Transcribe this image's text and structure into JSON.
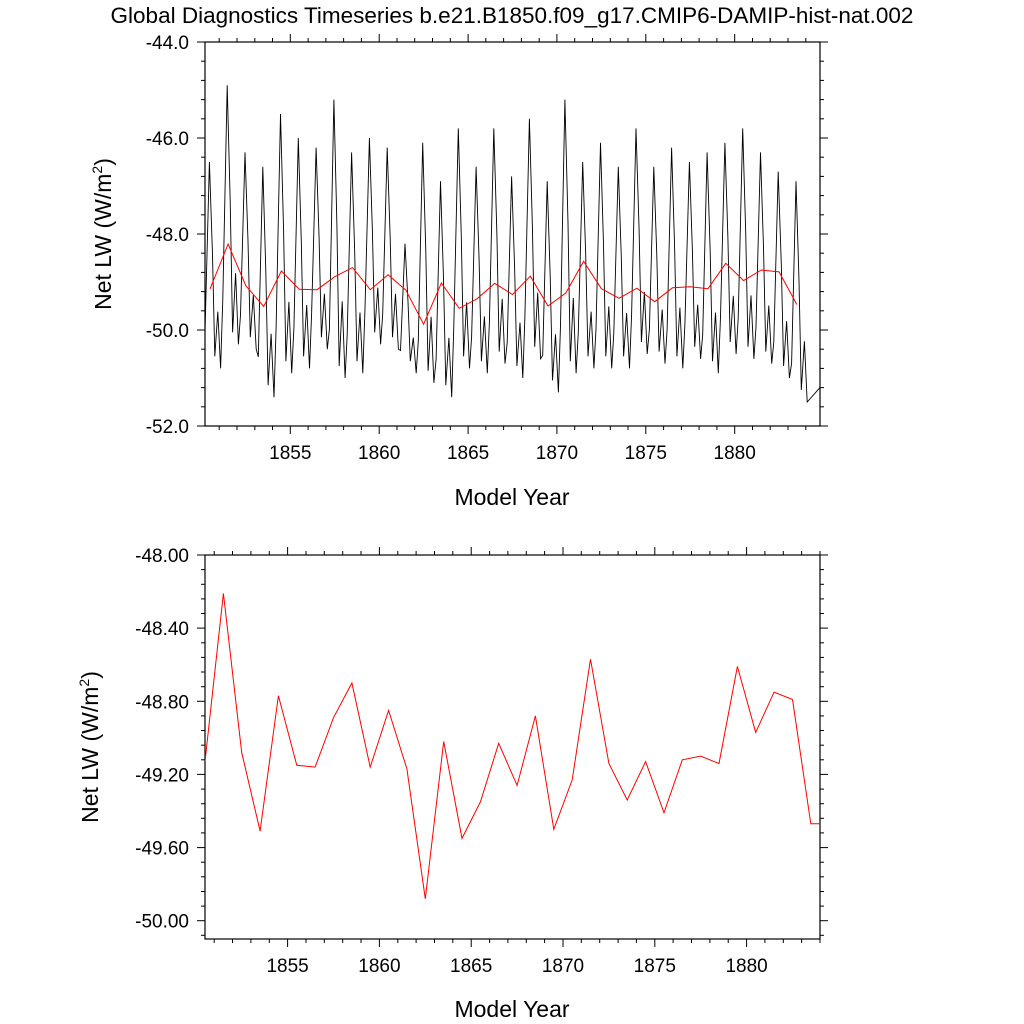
{
  "title": "Global Diagnostics Timeseries b.e21.B1850.f09_g17.CMIP6-DAMIP-hist-nat.002",
  "colors": {
    "monthly": "#000000",
    "annual": "#ff0000",
    "axis": "#000000"
  },
  "chart_data": [
    {
      "type": "line",
      "ylabel_main": "Net LW (W/m",
      "ylabel_sup": "2",
      "ylabel_close": ")",
      "xlabel": "Model Year",
      "xlim": [
        1850.2,
        1884.8
      ],
      "ylim": [
        -52.0,
        -44.0
      ],
      "xticks": [
        1855,
        1860,
        1865,
        1870,
        1875,
        1880
      ],
      "xtick_labels": [
        "1855",
        "1860",
        "1865",
        "1870",
        "1875",
        "1880"
      ],
      "yticks": [
        -52.0,
        -50.0,
        -48.0,
        -46.0,
        -44.0
      ],
      "ytick_labels": [
        "-52.0",
        "-50.0",
        "-48.0",
        "-46.0",
        "-44.0"
      ],
      "series": [
        {
          "name": "monthly",
          "color": "#000000",
          "peaks": [
            -46.5,
            -44.9,
            -46.3,
            -46.6,
            -45.5,
            -46.0,
            -46.2,
            -45.2,
            -46.3,
            -46.0,
            -46.2,
            -48.2,
            -46.1,
            -46.9,
            -45.8,
            -46.6,
            -45.8,
            -46.8,
            -45.6,
            -46.9,
            -45.2,
            -46.5,
            -46.1,
            -46.6,
            -45.8,
            -46.6,
            -46.2,
            -46.5,
            -46.3,
            -46.1,
            -45.8,
            -46.3,
            -46.7,
            -46.9
          ],
          "troughs": [
            -50.8,
            -50.3,
            -50.4,
            -51.4,
            -50.9,
            -50.8,
            -50.4,
            -51.0,
            -50.9,
            -50.3,
            -50.4,
            -50.9,
            -51.1,
            -51.4,
            -50.8,
            -50.9,
            -50.7,
            -51.0,
            -50.6,
            -51.3,
            -50.9,
            -50.8,
            -50.8,
            -50.8,
            -50.5,
            -50.7,
            -50.8,
            -50.6,
            -50.9,
            -50.5,
            -50.6,
            -50.7,
            -51.0,
            -51.5
          ]
        },
        {
          "name": "annual",
          "color": "#ff0000",
          "x": [
            1850.5,
            1851.5,
            1852.5,
            1853.5,
            1854.5,
            1855.5,
            1856.5,
            1857.5,
            1858.5,
            1859.5,
            1860.5,
            1861.5,
            1862.5,
            1863.5,
            1864.5,
            1865.5,
            1866.5,
            1867.5,
            1868.5,
            1869.5,
            1870.5,
            1871.5,
            1872.5,
            1873.5,
            1874.5,
            1875.5,
            1876.5,
            1877.5,
            1878.5,
            1879.5,
            1880.5,
            1881.5,
            1882.5,
            1883.5
          ],
          "values": [
            -49.13,
            -48.21,
            -49.08,
            -49.51,
            -48.77,
            -49.15,
            -49.16,
            -48.89,
            -48.7,
            -49.16,
            -48.85,
            -49.17,
            -49.88,
            -49.02,
            -49.55,
            -49.35,
            -49.03,
            -49.26,
            -48.88,
            -49.5,
            -49.23,
            -48.57,
            -49.14,
            -49.34,
            -49.13,
            -49.41,
            -49.12,
            -49.1,
            -49.14,
            -48.61,
            -48.97,
            -48.75,
            -48.79,
            -49.47
          ]
        }
      ]
    },
    {
      "type": "line",
      "ylabel_main": "Net LW (W/m",
      "ylabel_sup": "2",
      "ylabel_close": ")",
      "xlabel": "Model Year",
      "xlim": [
        1850.5,
        1884.0
      ],
      "ylim": [
        -50.1,
        -48.0
      ],
      "xticks": [
        1855,
        1860,
        1865,
        1870,
        1875,
        1880
      ],
      "xtick_labels": [
        "1855",
        "1860",
        "1865",
        "1870",
        "1875",
        "1880"
      ],
      "yticks": [
        -50.0,
        -49.6,
        -49.2,
        -48.8,
        -48.4,
        -48.0
      ],
      "ytick_labels": [
        "-50.00",
        "-49.60",
        "-49.20",
        "-48.80",
        "-48.40",
        "-48.00"
      ],
      "series": [
        {
          "name": "annual",
          "color": "#ff0000",
          "x": [
            1850.5,
            1851.5,
            1852.5,
            1853.5,
            1854.5,
            1855.5,
            1856.5,
            1857.5,
            1858.5,
            1859.5,
            1860.5,
            1861.5,
            1862.5,
            1863.5,
            1864.5,
            1865.5,
            1866.5,
            1867.5,
            1868.5,
            1869.5,
            1870.5,
            1871.5,
            1872.5,
            1873.5,
            1874.5,
            1875.5,
            1876.5,
            1877.5,
            1878.5,
            1879.5,
            1880.5,
            1881.5,
            1882.5,
            1883.5,
            1884.0
          ],
          "values": [
            -49.13,
            -48.21,
            -49.08,
            -49.51,
            -48.77,
            -49.15,
            -49.16,
            -48.89,
            -48.7,
            -49.16,
            -48.85,
            -49.17,
            -49.88,
            -49.02,
            -49.55,
            -49.35,
            -49.03,
            -49.26,
            -48.88,
            -49.5,
            -49.23,
            -48.57,
            -49.14,
            -49.34,
            -49.13,
            -49.41,
            -49.12,
            -49.1,
            -49.14,
            -48.61,
            -48.97,
            -48.75,
            -48.79,
            -49.47,
            -49.47
          ]
        }
      ]
    }
  ]
}
